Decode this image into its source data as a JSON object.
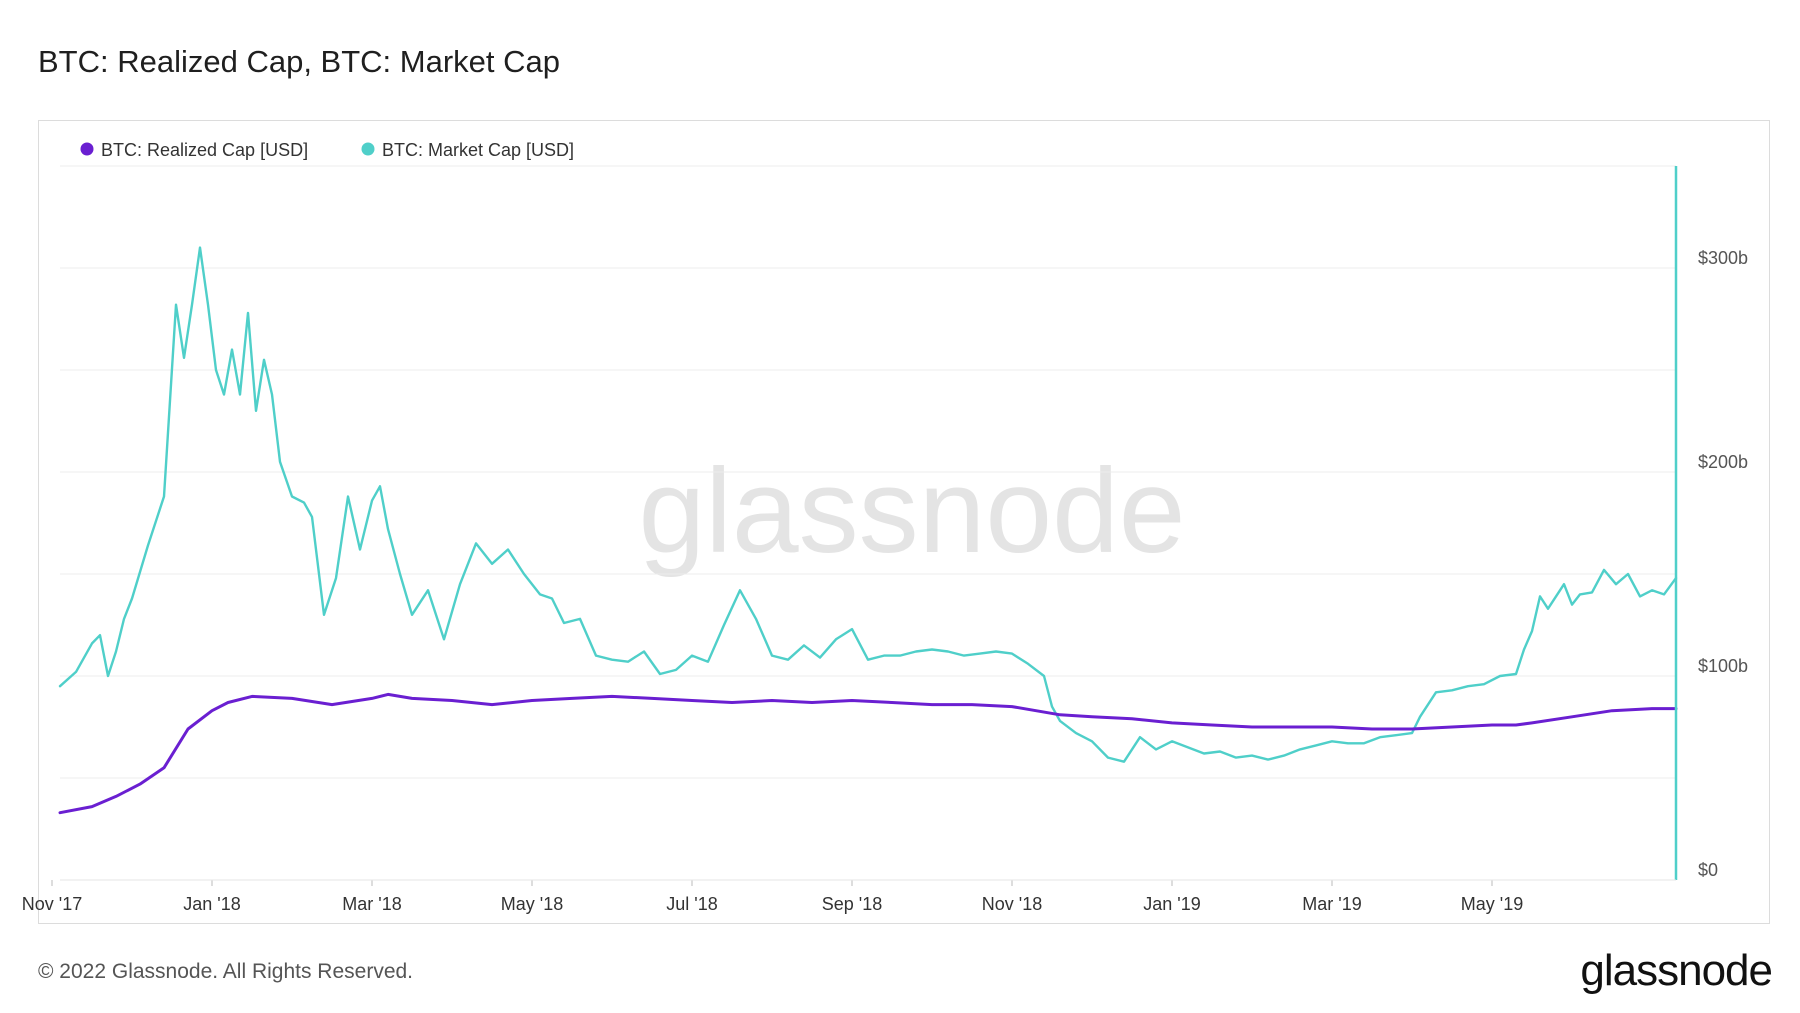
{
  "page": {
    "title": "BTC: Realized Cap, BTC: Market Cap",
    "footer": "© 2022 Glassnode. All Rights Reserved.",
    "logo": "glassnode",
    "watermark": "glassnode"
  },
  "chart_data": {
    "type": "line",
    "title": "BTC: Realized Cap, BTC: Market Cap",
    "x_unit": "months since 2017-10-01",
    "xlim": [
      1.1,
      21.3
    ],
    "ylim": [
      0,
      350
    ],
    "y_axis_side": "right",
    "legend_position": "top-left",
    "x_ticks": [
      {
        "label": "Nov '17",
        "x": 1
      },
      {
        "label": "Jan '18",
        "x": 3
      },
      {
        "label": "Mar '18",
        "x": 5
      },
      {
        "label": "May '18",
        "x": 7
      },
      {
        "label": "Jul '18",
        "x": 9
      },
      {
        "label": "Sep '18",
        "x": 11
      },
      {
        "label": "Nov '18",
        "x": 13
      },
      {
        "label": "Jan '19",
        "x": 15
      },
      {
        "label": "Mar '19",
        "x": 17
      },
      {
        "label": "May '19",
        "x": 19
      }
    ],
    "y_ticks": [
      {
        "label": "$0",
        "value": 0
      },
      {
        "label": "$100b",
        "value": 100
      },
      {
        "label": "$200b",
        "value": 200
      },
      {
        "label": "$300b",
        "value": 300
      }
    ],
    "series": [
      {
        "name": "BTC: Realized Cap [USD]",
        "color": "#6a1fd1",
        "x": [
          1.1,
          1.5,
          1.8,
          2.1,
          2.4,
          2.7,
          3.0,
          3.2,
          3.5,
          4.0,
          4.5,
          5.0,
          5.2,
          5.5,
          6.0,
          6.5,
          7.0,
          7.5,
          8.0,
          8.5,
          9.0,
          9.5,
          10.0,
          10.5,
          11.0,
          11.5,
          12.0,
          12.5,
          13.0,
          13.3,
          13.6,
          14.0,
          14.5,
          15.0,
          15.5,
          16.0,
          16.5,
          17.0,
          17.5,
          18.0,
          18.5,
          19.0,
          19.3,
          19.5,
          20.0,
          20.5,
          21.0,
          21.3
        ],
        "y": [
          33,
          36,
          41,
          47,
          55,
          74,
          83,
          87,
          90,
          89,
          86,
          89,
          91,
          89,
          88,
          86,
          88,
          89,
          90,
          89,
          88,
          87,
          88,
          87,
          88,
          87,
          86,
          86,
          85,
          83,
          81,
          80,
          79,
          77,
          76,
          75,
          75,
          75,
          74,
          74,
          75,
          76,
          76,
          77,
          80,
          83,
          84,
          84
        ]
      },
      {
        "name": "BTC: Market Cap [USD]",
        "color": "#4fcfc9",
        "x": [
          1.1,
          1.3,
          1.5,
          1.6,
          1.7,
          1.8,
          1.9,
          2.0,
          2.2,
          2.4,
          2.55,
          2.65,
          2.75,
          2.85,
          2.95,
          3.05,
          3.15,
          3.25,
          3.35,
          3.45,
          3.55,
          3.65,
          3.75,
          3.85,
          4.0,
          4.15,
          4.25,
          4.4,
          4.55,
          4.7,
          4.85,
          5.0,
          5.1,
          5.2,
          5.35,
          5.5,
          5.7,
          5.9,
          6.1,
          6.3,
          6.5,
          6.7,
          6.9,
          7.1,
          7.25,
          7.4,
          7.6,
          7.8,
          8.0,
          8.2,
          8.4,
          8.6,
          8.8,
          9.0,
          9.2,
          9.4,
          9.6,
          9.8,
          10.0,
          10.2,
          10.4,
          10.6,
          10.8,
          11.0,
          11.2,
          11.4,
          11.6,
          11.8,
          12.0,
          12.2,
          12.4,
          12.6,
          12.8,
          13.0,
          13.2,
          13.4,
          13.5,
          13.6,
          13.8,
          14.0,
          14.2,
          14.4,
          14.6,
          14.8,
          15.0,
          15.2,
          15.4,
          15.6,
          15.8,
          16.0,
          16.2,
          16.4,
          16.6,
          16.8,
          17.0,
          17.2,
          17.4,
          17.6,
          17.8,
          18.0,
          18.1,
          18.3,
          18.5,
          18.7,
          18.9,
          19.1,
          19.3,
          19.4,
          19.5,
          19.6,
          19.7,
          19.9,
          20.0,
          20.1,
          20.25,
          20.4,
          20.55,
          20.7,
          20.85,
          21.0,
          21.15,
          21.3
        ],
        "y": [
          95,
          102,
          116,
          120,
          100,
          112,
          128,
          138,
          164,
          188,
          282,
          256,
          282,
          310,
          282,
          250,
          238,
          260,
          238,
          278,
          230,
          255,
          238,
          205,
          188,
          185,
          178,
          130,
          148,
          188,
          162,
          186,
          193,
          172,
          150,
          130,
          142,
          118,
          145,
          165,
          155,
          162,
          150,
          140,
          138,
          126,
          128,
          110,
          108,
          107,
          112,
          101,
          103,
          110,
          107,
          125,
          142,
          128,
          110,
          108,
          115,
          109,
          118,
          123,
          108,
          110,
          110,
          112,
          113,
          112,
          110,
          111,
          112,
          111,
          106,
          100,
          85,
          78,
          72,
          68,
          60,
          58,
          70,
          64,
          68,
          65,
          62,
          63,
          60,
          61,
          59,
          61,
          64,
          66,
          68,
          67,
          67,
          70,
          71,
          72,
          80,
          92,
          93,
          95,
          96,
          100,
          101,
          113,
          122,
          139,
          133,
          145,
          135,
          140,
          141,
          152,
          145,
          150,
          139,
          142,
          140,
          148
        ]
      }
    ]
  }
}
